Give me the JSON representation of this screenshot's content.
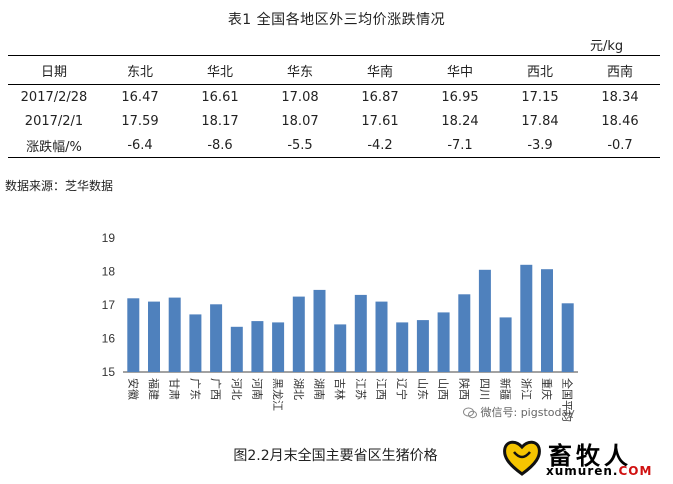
{
  "table": {
    "title": "表1  全国各地区外三均价涨跌情况",
    "unit": "元/kg",
    "headers": [
      "日期",
      "东北",
      "华北",
      "华东",
      "华南",
      "华中",
      "西北",
      "西南"
    ],
    "rows": [
      [
        "2017/2/28",
        "16.47",
        "16.61",
        "17.08",
        "16.87",
        "16.95",
        "17.15",
        "18.34"
      ],
      [
        "2017/2/1",
        "17.59",
        "18.17",
        "18.07",
        "17.61",
        "18.24",
        "17.84",
        "18.46"
      ],
      [
        "涨跌幅/%",
        "-6.4",
        "-8.6",
        "-5.5",
        "-4.2",
        "-7.1",
        "-3.9",
        "-0.7"
      ]
    ]
  },
  "source": "数据来源：芝华数据",
  "chart_data": {
    "type": "bar",
    "title": "图2.2月末全国主要省区生猪价格",
    "xlabel": "",
    "ylabel": "",
    "ylim": [
      15,
      19
    ],
    "yticks": [
      15,
      16,
      17,
      18,
      19
    ],
    "grid": false,
    "bar_color": "#4f81bd",
    "categories": [
      "安徽",
      "福建",
      "甘肃",
      "广东",
      "广西",
      "河北",
      "河南",
      "黑龙江",
      "湖北",
      "湖南",
      "吉林",
      "江苏",
      "江西",
      "辽宁",
      "山东",
      "山西",
      "陕西",
      "四川",
      "新疆",
      "浙江",
      "重庆",
      "全国平均"
    ],
    "values": [
      17.2,
      17.1,
      17.22,
      16.72,
      17.02,
      16.35,
      16.52,
      16.48,
      17.25,
      17.45,
      16.42,
      17.3,
      17.1,
      16.48,
      16.55,
      16.78,
      17.32,
      18.05,
      16.63,
      18.2,
      18.07,
      17.05
    ]
  },
  "watermark": {
    "wechat": "微信号: pigstoday",
    "brand": "畜牧人",
    "domain_main": "xumuren.",
    "domain_tld": "COM"
  },
  "colors": {
    "bar": "#4f81bd",
    "axis": "#444444",
    "logo_red": "#d01010",
    "logo_yellow": "#f5c400"
  }
}
